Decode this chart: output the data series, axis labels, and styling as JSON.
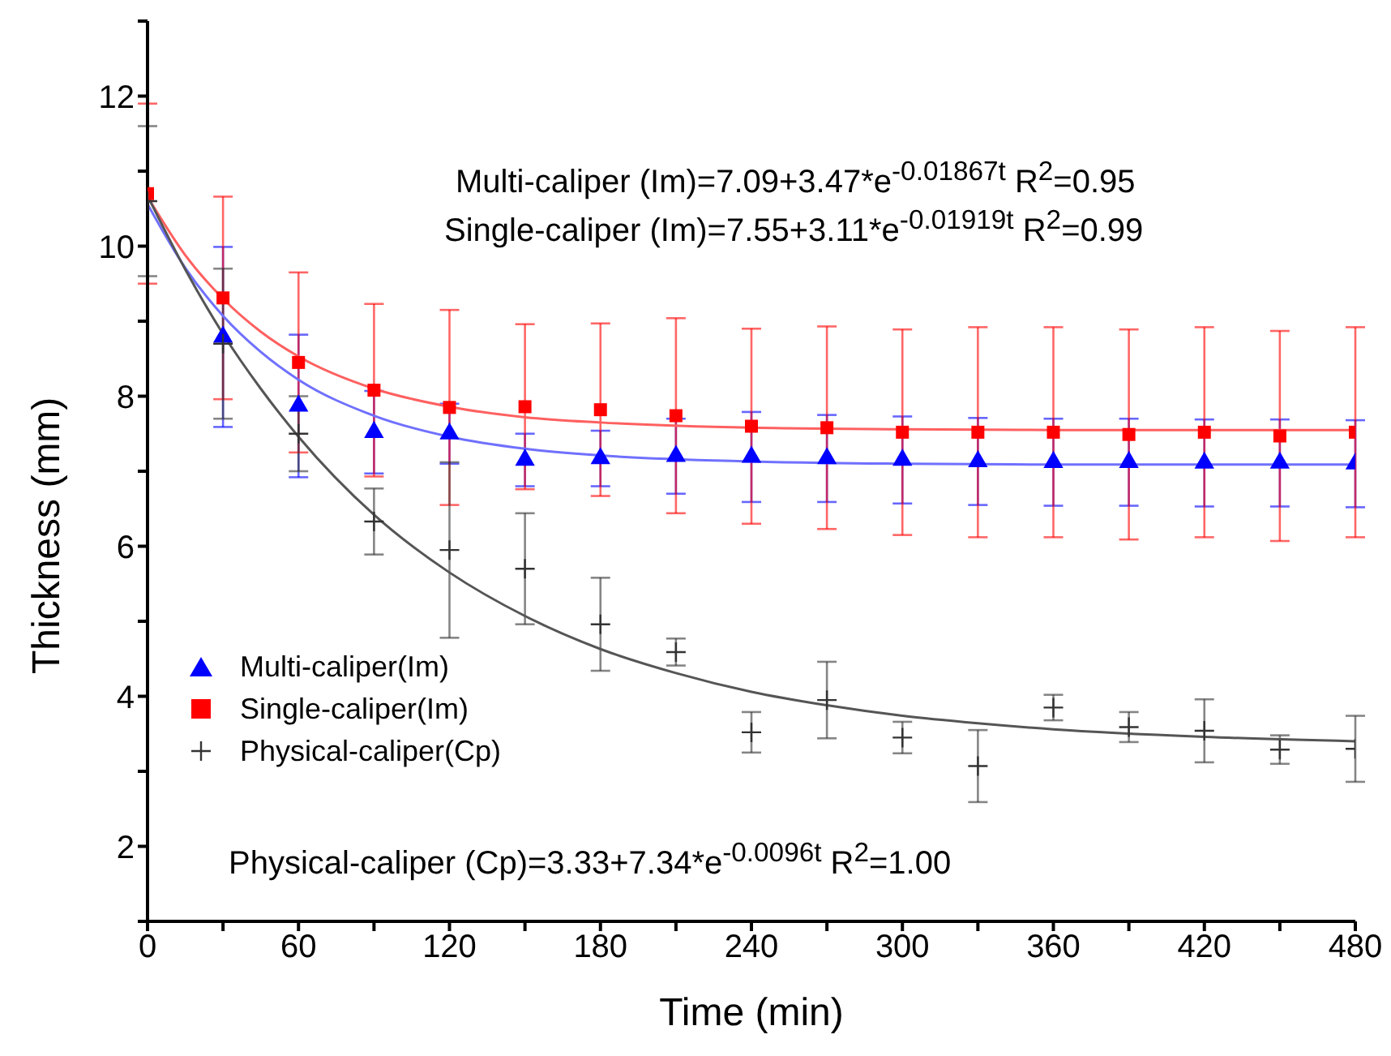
{
  "chart_data": {
    "type": "scatter",
    "xlabel": "Time (min)",
    "ylabel": "Thickness (mm)",
    "xlim": [
      0,
      480
    ],
    "xticks": [
      0,
      {
        "value": 30,
        "label": null
      },
      60,
      {
        "value": 90,
        "label": null
      },
      120,
      {
        "value": 150,
        "label": null
      },
      180,
      {
        "value": 210,
        "label": null
      },
      240,
      {
        "value": 270,
        "label": null
      },
      300,
      {
        "value": 330,
        "label": null
      },
      360,
      {
        "value": 390,
        "label": null
      },
      420,
      {
        "value": 450,
        "label": null
      },
      480
    ],
    "ylim": [
      1,
      13
    ],
    "yticks": [
      {
        "value": 1,
        "label": null
      },
      2,
      {
        "value": 3,
        "label": null
      },
      4,
      {
        "value": 5,
        "label": null
      },
      6,
      {
        "value": 7,
        "label": null
      },
      8,
      {
        "value": 9,
        "label": null
      },
      10,
      {
        "value": 11,
        "label": null
      },
      12,
      {
        "value": 13,
        "label": null
      }
    ],
    "x": [
      0,
      30,
      60,
      90,
      120,
      150,
      180,
      210,
      240,
      270,
      300,
      330,
      360,
      390,
      420,
      450,
      480
    ],
    "legend": "bottom left",
    "annotations": [
      "Multi-caliper (Im)=7.09+3.47*e$^{-0.01867t}$ R$^{2}$=0.95",
      "Single-caliper (Im)=7.55+3.11*e$^{-0.01919t}$ R$^{2}$=0.99",
      "Physical-caliper (Cp)=3.33+7.34*e$^{-0.0096t}$ R$^{2}$=1.00"
    ],
    "series": [
      {
        "name": "Multi-caliper(Im)",
        "color": "#0000ff",
        "marker": "triangle",
        "values": [
          null,
          8.79,
          7.87,
          7.52,
          7.5,
          7.15,
          7.17,
          7.2,
          7.19,
          7.17,
          7.15,
          7.13,
          7.12,
          7.12,
          7.11,
          7.11,
          7.1
        ],
        "errors": [
          null,
          1.2,
          0.95,
          0.55,
          0.4,
          0.35,
          0.37,
          0.5,
          0.6,
          0.58,
          0.58,
          0.58,
          0.58,
          0.58,
          0.58,
          0.58,
          0.58
        ]
      },
      {
        "name": "Single-caliper(Im)",
        "color": "#ff0000",
        "marker": "square",
        "values": [
          10.7,
          9.31,
          8.45,
          8.08,
          7.85,
          7.86,
          7.82,
          7.74,
          7.6,
          7.58,
          7.52,
          7.52,
          7.52,
          7.49,
          7.52,
          7.47,
          7.52
        ],
        "errors": [
          1.2,
          1.35,
          1.2,
          1.15,
          1.3,
          1.1,
          1.15,
          1.3,
          1.3,
          1.35,
          1.37,
          1.4,
          1.4,
          1.4,
          1.4,
          1.4,
          1.4
        ]
      },
      {
        "name": "Physical-caliper(Cp)",
        "color": "#333333",
        "marker": "cross",
        "values": [
          10.6,
          8.7,
          7.5,
          6.33,
          5.95,
          5.7,
          4.96,
          4.59,
          3.52,
          3.95,
          3.45,
          3.07,
          3.85,
          3.59,
          3.54,
          3.29,
          3.3
        ],
        "errors": [
          1.0,
          1.0,
          0.5,
          0.44,
          1.17,
          0.74,
          0.62,
          0.18,
          0.27,
          0.51,
          0.21,
          0.48,
          0.17,
          0.2,
          0.42,
          0.19,
          0.44
        ]
      },
      {
        "type": "line",
        "color": "#7070ff",
        "x": [
          0,
          15,
          30,
          45,
          60,
          90,
          120,
          150,
          180,
          240,
          300,
          360,
          480
        ],
        "values": [
          10.56,
          9.71,
          9.07,
          8.59,
          8.22,
          7.74,
          7.46,
          7.3,
          7.21,
          7.13,
          7.1,
          7.09,
          7.09
        ]
      },
      {
        "type": "line",
        "color": "#ff6060",
        "x": [
          0,
          15,
          30,
          45,
          60,
          90,
          120,
          150,
          180,
          240,
          300,
          360,
          480
        ],
        "values": [
          10.66,
          9.88,
          9.3,
          8.86,
          8.53,
          8.1,
          7.86,
          7.72,
          7.65,
          7.58,
          7.56,
          7.55,
          7.55
        ]
      },
      {
        "type": "line",
        "color": "#555555",
        "x": [
          0,
          15,
          30,
          45,
          60,
          90,
          120,
          150,
          180,
          210,
          240,
          270,
          300,
          330,
          360,
          420,
          480
        ],
        "values": [
          10.67,
          9.69,
          8.83,
          8.1,
          7.46,
          6.42,
          5.65,
          5.07,
          4.63,
          4.31,
          4.06,
          3.88,
          3.74,
          3.64,
          3.56,
          3.46,
          3.4
        ]
      }
    ]
  }
}
